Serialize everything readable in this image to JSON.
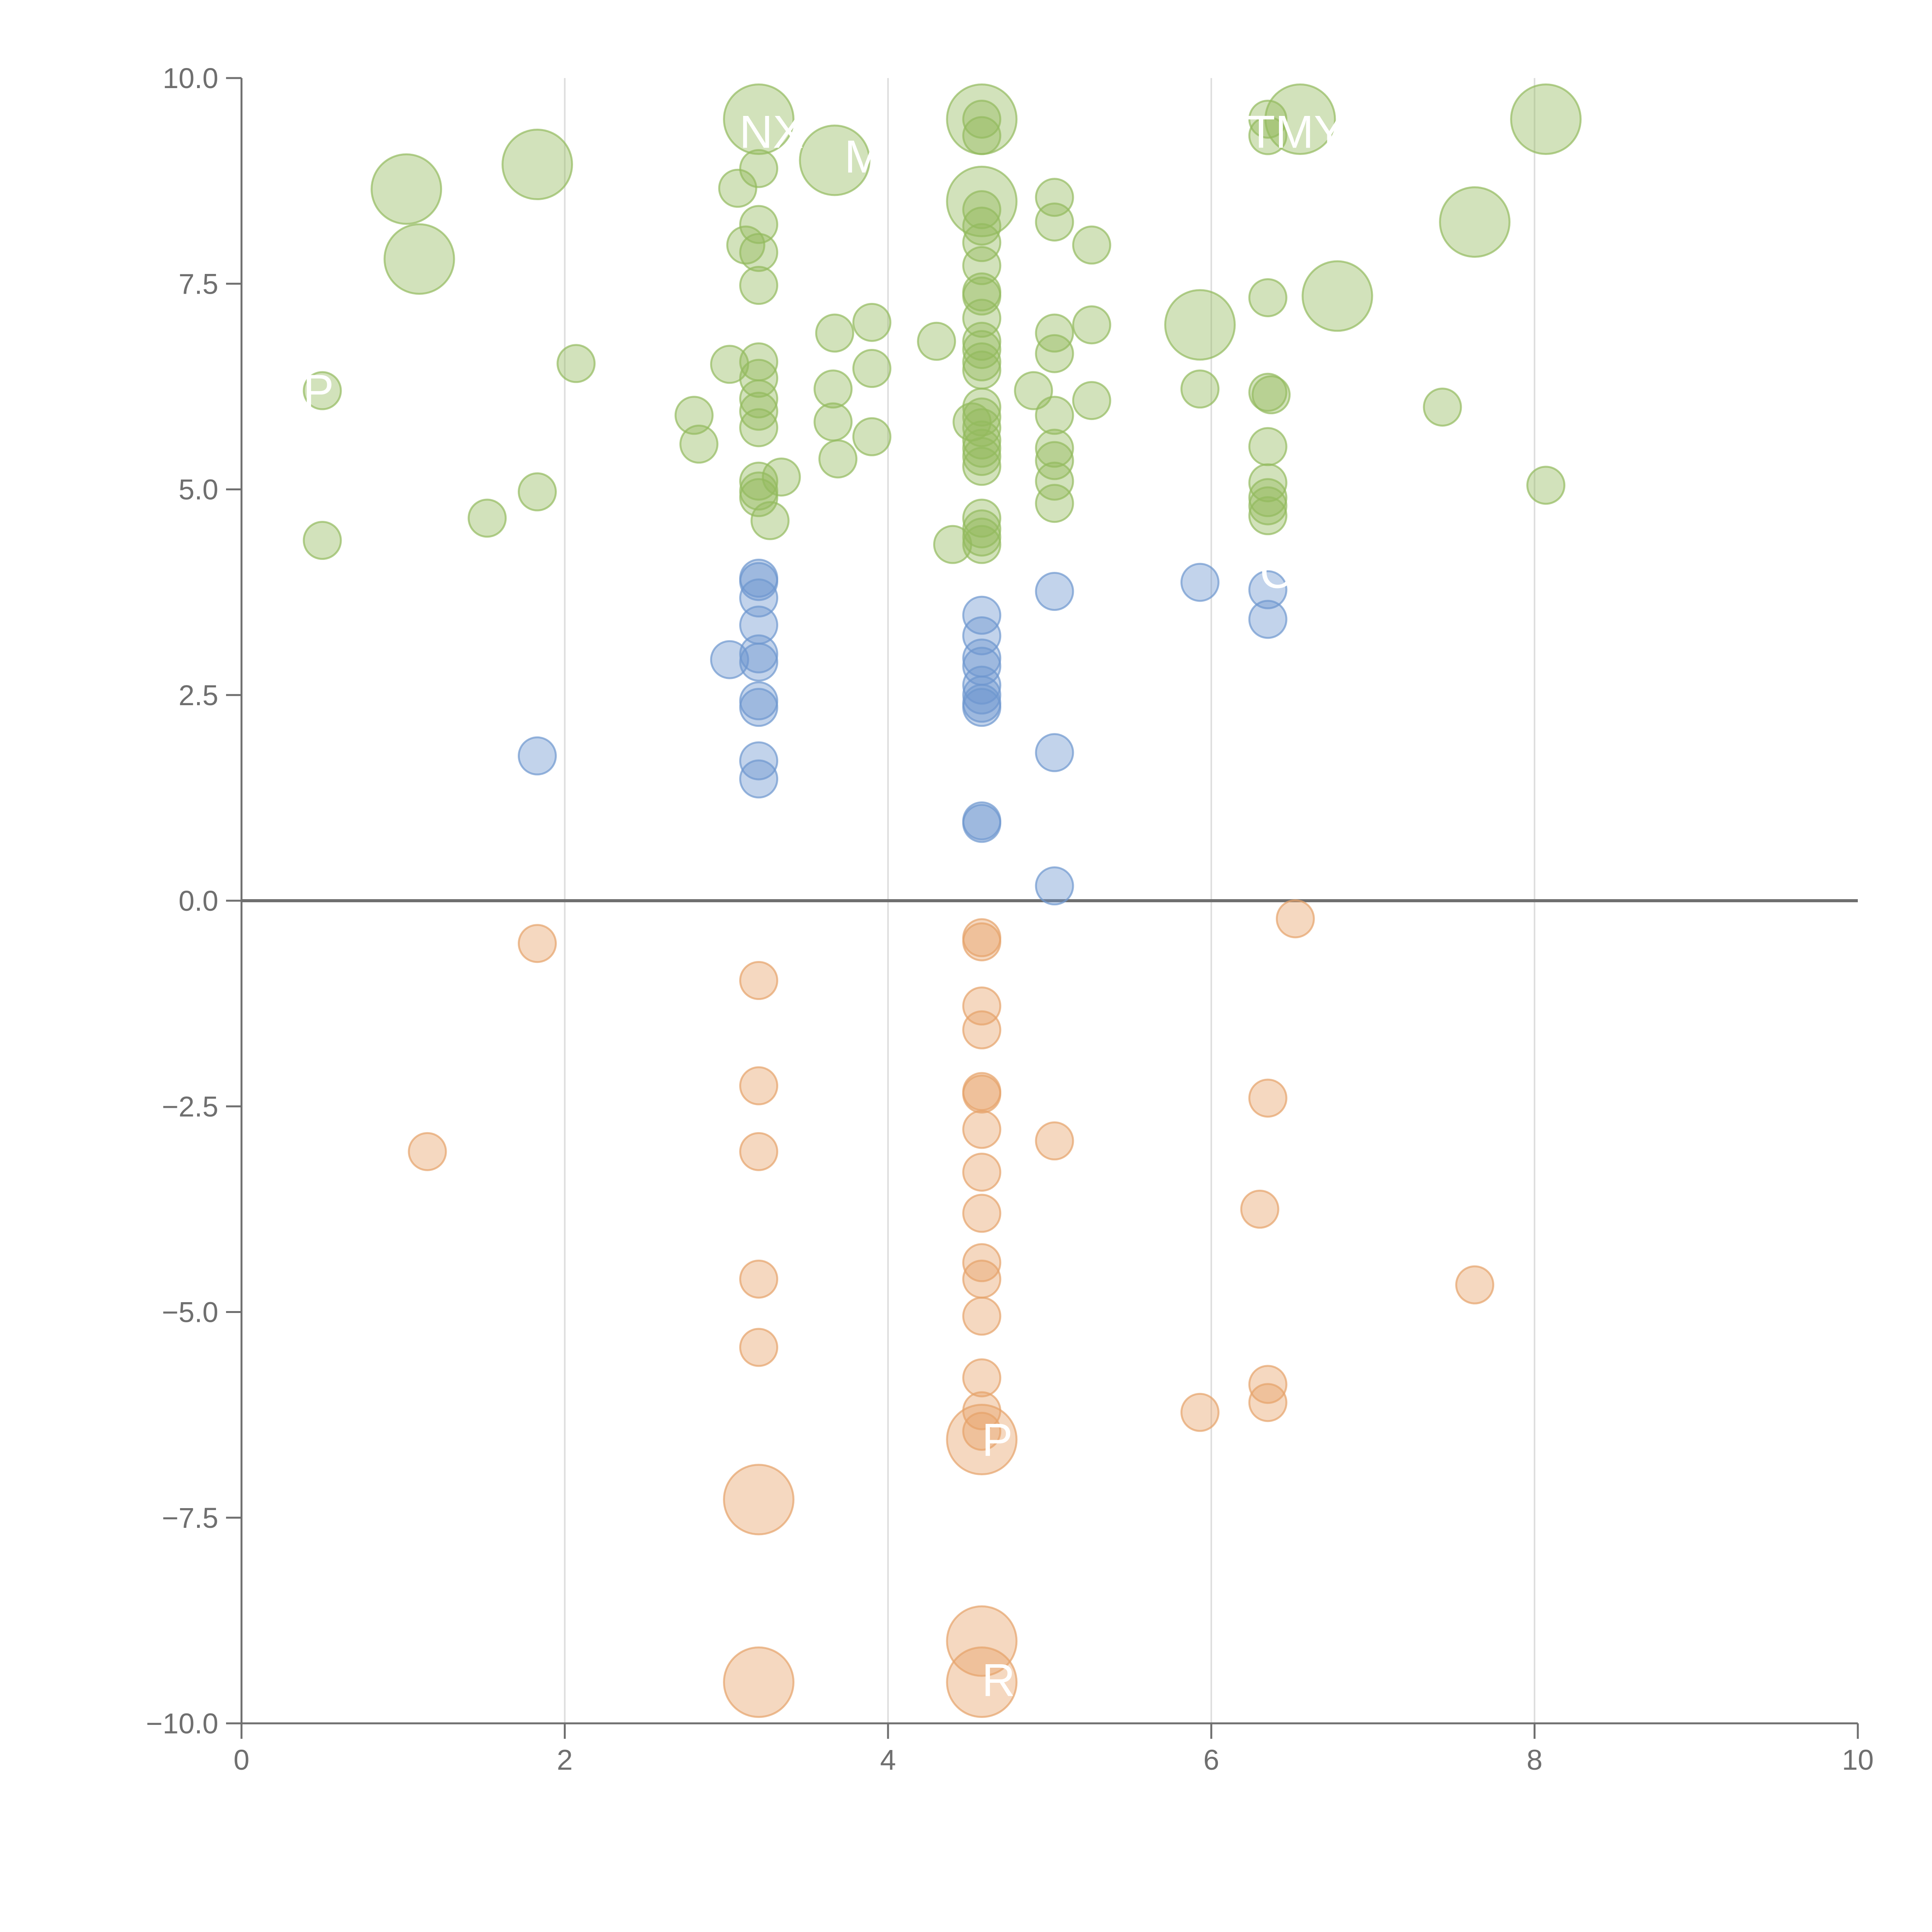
{
  "chart_data": {
    "type": "scatter",
    "title": "",
    "xlabel": "",
    "ylabel": "",
    "xlim": [
      0,
      10
    ],
    "ylim": [
      -10,
      10
    ],
    "x_ticks": [
      0,
      2,
      4,
      6,
      8,
      10
    ],
    "x_tick_labels": [
      "0",
      "2",
      "4",
      "6",
      "8",
      "10"
    ],
    "y_ticks": [
      10,
      7.5,
      5,
      2.5,
      0,
      -2.5,
      -5,
      -7.5,
      -10
    ],
    "y_tick_labels": [
      "10.0",
      "7.5",
      "5.0",
      "2.5",
      "0.0",
      "−2.5",
      "−5.0",
      "−7.5",
      "−10.0"
    ],
    "vertical_gridlines": [
      2,
      4,
      6,
      8
    ],
    "zero_line": 0,
    "colors": {
      "green": "#93bb5e",
      "blue": "#6e97cf",
      "orange": "#e6a26a",
      "axis": "#6f6f6f",
      "grid": "#dddddd"
    },
    "series": [
      {
        "name": "green",
        "color": "#93bb5e",
        "points": [
          [
            0.5,
            4.38,
            1
          ],
          [
            0.5,
            6.2,
            1
          ],
          [
            1.02,
            8.65,
            2
          ],
          [
            1.1,
            7.8,
            2
          ],
          [
            1.52,
            4.65,
            1
          ],
          [
            1.83,
            4.97,
            1
          ],
          [
            1.83,
            8.95,
            2
          ],
          [
            2.07,
            6.53,
            1
          ],
          [
            2.8,
            5.9,
            1
          ],
          [
            2.83,
            5.55,
            1
          ],
          [
            3.02,
            6.52,
            1
          ],
          [
            3.07,
            8.66,
            1
          ],
          [
            3.12,
            7.97,
            1
          ],
          [
            3.2,
            9.5,
            2
          ],
          [
            3.2,
            8.9,
            1
          ],
          [
            3.2,
            8.22,
            1
          ],
          [
            3.2,
            7.88,
            1
          ],
          [
            3.2,
            7.48,
            1
          ],
          [
            3.2,
            6.55,
            1
          ],
          [
            3.2,
            6.35,
            1
          ],
          [
            3.2,
            6.1,
            1
          ],
          [
            3.2,
            5.95,
            1
          ],
          [
            3.2,
            5.75,
            1
          ],
          [
            3.2,
            5.1,
            1
          ],
          [
            3.2,
            4.98,
            1
          ],
          [
            3.2,
            4.9,
            1
          ],
          [
            3.27,
            4.62,
            1
          ],
          [
            3.34,
            5.15,
            1
          ],
          [
            3.67,
            6.9,
            1
          ],
          [
            3.66,
            6.22,
            1
          ],
          [
            3.66,
            5.82,
            1
          ],
          [
            3.69,
            5.37,
            1
          ],
          [
            3.67,
            9.0,
            2
          ],
          [
            3.9,
            7.03,
            1
          ],
          [
            3.9,
            6.47,
            1
          ],
          [
            3.9,
            5.64,
            1
          ],
          [
            4.3,
            6.8,
            1
          ],
          [
            4.4,
            4.33,
            1
          ],
          [
            4.52,
            5.82,
            1
          ],
          [
            4.58,
            9.5,
            2
          ],
          [
            4.58,
            9.5,
            1
          ],
          [
            4.58,
            9.3,
            1
          ],
          [
            4.58,
            8.5,
            2
          ],
          [
            4.58,
            8.4,
            1
          ],
          [
            4.58,
            8.2,
            1
          ],
          [
            4.58,
            8.0,
            1
          ],
          [
            4.58,
            7.72,
            1
          ],
          [
            4.58,
            7.4,
            1
          ],
          [
            4.58,
            7.35,
            1
          ],
          [
            4.58,
            7.08,
            1
          ],
          [
            4.58,
            6.8,
            1
          ],
          [
            4.58,
            6.7,
            1
          ],
          [
            4.58,
            6.55,
            1
          ],
          [
            4.58,
            6.45,
            1
          ],
          [
            4.58,
            6.0,
            1
          ],
          [
            4.58,
            5.88,
            1
          ],
          [
            4.58,
            5.75,
            1
          ],
          [
            4.58,
            5.6,
            1
          ],
          [
            4.58,
            5.5,
            1
          ],
          [
            4.58,
            5.4,
            1
          ],
          [
            4.58,
            5.28,
            1
          ],
          [
            4.58,
            4.65,
            1
          ],
          [
            4.58,
            4.52,
            1
          ],
          [
            4.58,
            4.42,
            1
          ],
          [
            4.58,
            4.33,
            1
          ],
          [
            4.9,
            6.2,
            1
          ],
          [
            5.03,
            8.55,
            1
          ],
          [
            5.03,
            8.25,
            1
          ],
          [
            5.03,
            6.9,
            1
          ],
          [
            5.03,
            6.65,
            1
          ],
          [
            5.03,
            5.9,
            1
          ],
          [
            5.03,
            5.5,
            1
          ],
          [
            5.03,
            5.35,
            1
          ],
          [
            5.03,
            5.1,
            1
          ],
          [
            5.03,
            4.83,
            1
          ],
          [
            5.26,
            7.97,
            1
          ],
          [
            5.26,
            7.0,
            1
          ],
          [
            5.26,
            6.08,
            1
          ],
          [
            5.93,
            7.0,
            2
          ],
          [
            5.93,
            6.22,
            1
          ],
          [
            6.35,
            9.5,
            1
          ],
          [
            6.35,
            9.3,
            1
          ],
          [
            6.35,
            7.33,
            1
          ],
          [
            6.35,
            6.18,
            1
          ],
          [
            6.37,
            6.15,
            1
          ],
          [
            6.35,
            5.52,
            1
          ],
          [
            6.35,
            5.08,
            1
          ],
          [
            6.35,
            4.9,
            1
          ],
          [
            6.35,
            4.8,
            1
          ],
          [
            6.35,
            4.68,
            1
          ],
          [
            6.55,
            9.5,
            2
          ],
          [
            6.78,
            7.35,
            2
          ],
          [
            7.43,
            6.0,
            1
          ],
          [
            7.63,
            8.25,
            2
          ],
          [
            8.07,
            9.5,
            2
          ],
          [
            8.07,
            5.05,
            1
          ]
        ]
      },
      {
        "name": "blue",
        "color": "#6e97cf",
        "points": [
          [
            1.83,
            1.76,
            1
          ],
          [
            3.02,
            2.93,
            1
          ],
          [
            3.2,
            3.92,
            1
          ],
          [
            3.2,
            3.88,
            1
          ],
          [
            3.2,
            3.68,
            1
          ],
          [
            3.2,
            3.35,
            1
          ],
          [
            3.2,
            3.0,
            1
          ],
          [
            3.2,
            2.9,
            1
          ],
          [
            3.2,
            2.43,
            1
          ],
          [
            3.2,
            2.35,
            1
          ],
          [
            3.2,
            1.7,
            1
          ],
          [
            3.2,
            1.48,
            1
          ],
          [
            4.58,
            3.47,
            1
          ],
          [
            4.58,
            3.22,
            1
          ],
          [
            4.58,
            2.95,
            1
          ],
          [
            4.58,
            2.85,
            1
          ],
          [
            4.58,
            2.62,
            1
          ],
          [
            4.58,
            2.5,
            1
          ],
          [
            4.58,
            2.4,
            1
          ],
          [
            4.58,
            2.35,
            1
          ],
          [
            4.58,
            0.97,
            1
          ],
          [
            4.58,
            0.94,
            1
          ],
          [
            5.03,
            3.76,
            1
          ],
          [
            5.03,
            1.8,
            1
          ],
          [
            5.03,
            0.18,
            1
          ],
          [
            5.93,
            3.87,
            1
          ],
          [
            6.35,
            3.78,
            1
          ],
          [
            6.35,
            3.42,
            1
          ]
        ]
      },
      {
        "name": "orange",
        "color": "#e6a26a",
        "points": [
          [
            1.15,
            -3.05,
            1
          ],
          [
            1.83,
            -0.52,
            1
          ],
          [
            3.2,
            -0.97,
            1
          ],
          [
            3.2,
            -2.25,
            1
          ],
          [
            3.2,
            -3.05,
            1
          ],
          [
            3.2,
            -4.6,
            1
          ],
          [
            3.2,
            -5.43,
            1
          ],
          [
            3.2,
            -7.28,
            2
          ],
          [
            3.2,
            -9.5,
            2
          ],
          [
            4.58,
            -0.45,
            1
          ],
          [
            4.58,
            -0.5,
            1
          ],
          [
            4.58,
            -1.28,
            1
          ],
          [
            4.58,
            -1.57,
            1
          ],
          [
            4.58,
            -2.32,
            1
          ],
          [
            4.58,
            -2.35,
            1
          ],
          [
            4.58,
            -2.78,
            1
          ],
          [
            4.58,
            -3.3,
            1
          ],
          [
            4.58,
            -3.8,
            1
          ],
          [
            4.58,
            -4.4,
            1
          ],
          [
            4.58,
            -4.6,
            1
          ],
          [
            4.58,
            -5.05,
            1
          ],
          [
            4.58,
            -5.8,
            1
          ],
          [
            4.58,
            -6.2,
            1
          ],
          [
            4.58,
            -6.45,
            1
          ],
          [
            4.58,
            -6.55,
            2
          ],
          [
            4.58,
            -9.0,
            2
          ],
          [
            4.58,
            -9.5,
            2
          ],
          [
            5.03,
            -2.92,
            1
          ],
          [
            5.93,
            -6.22,
            1
          ],
          [
            6.3,
            -3.75,
            1
          ],
          [
            6.35,
            -2.4,
            1
          ],
          [
            6.35,
            -5.88,
            1
          ],
          [
            6.35,
            -6.1,
            1
          ],
          [
            6.52,
            -0.22,
            1
          ],
          [
            7.63,
            -4.67,
            1
          ]
        ]
      }
    ],
    "annotations": [
      {
        "text": "NX",
        "x": 3.08,
        "y": 9.35
      },
      {
        "text": "M",
        "x": 3.73,
        "y": 9.05
      },
      {
        "text": "TMY",
        "x": 6.22,
        "y": 9.35
      },
      {
        "text": "P",
        "x": 0.38,
        "y": 6.2
      },
      {
        "text": "C",
        "x": 6.3,
        "y": 4.0
      },
      {
        "text": "P",
        "x": 4.58,
        "y": -6.55
      },
      {
        "text": "R",
        "x": 4.58,
        "y": -9.47
      }
    ]
  }
}
